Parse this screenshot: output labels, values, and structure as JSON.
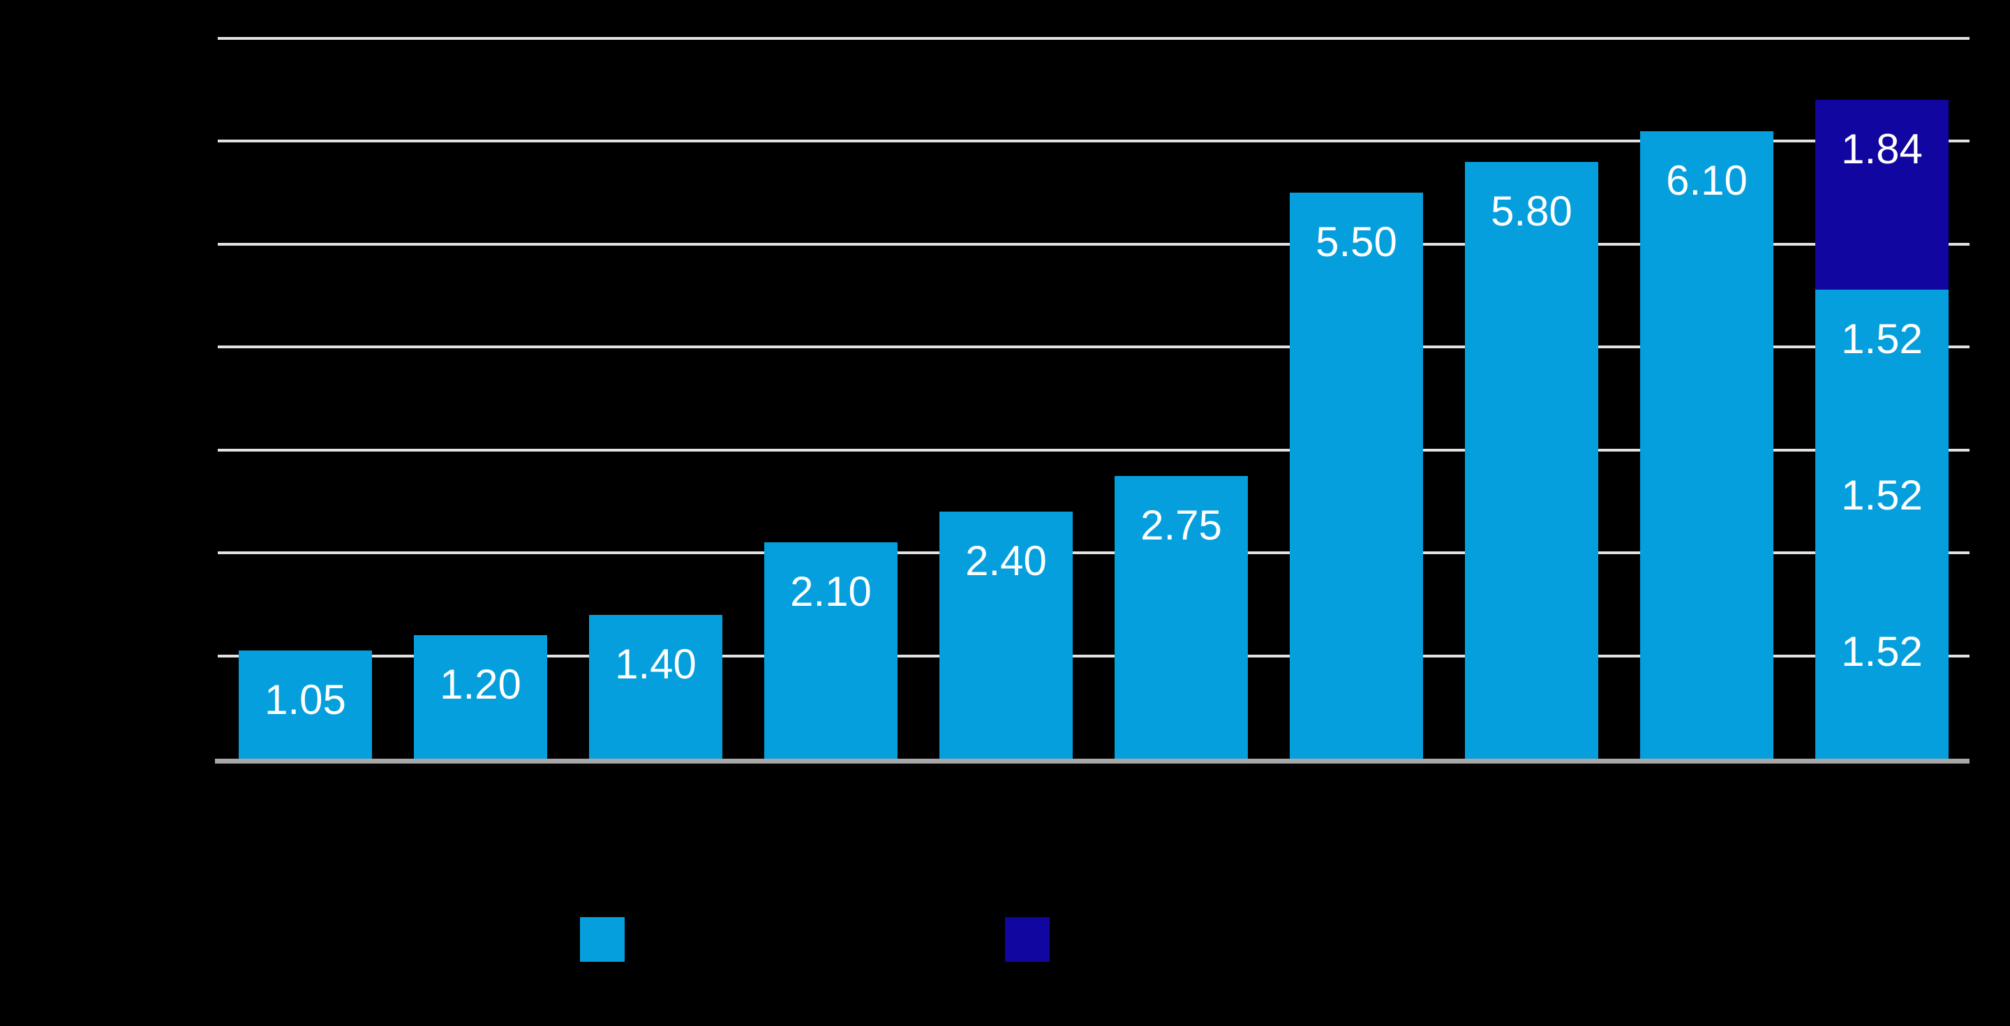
{
  "canvas": {
    "background": "#000000"
  },
  "chart_data": {
    "type": "bar",
    "stacked": true,
    "title": "",
    "xlabel": "",
    "ylabel": "",
    "ylim": [
      0,
      7
    ],
    "grid": true,
    "gridlines": {
      "values": [
        1,
        2,
        3,
        4,
        5,
        6,
        7
      ],
      "color": "#E2E2E2",
      "baseline_color": "#A8A8A8"
    },
    "value_label_color": "#FFFFFF",
    "series": [
      {
        "id": "light-blue",
        "color": "#059FDD"
      },
      {
        "id": "dark-blue",
        "color": "#1106A0"
      }
    ],
    "bars": [
      {
        "segments": [
          {
            "series": "light-blue",
            "value": 1.05,
            "label": "1.05"
          }
        ]
      },
      {
        "segments": [
          {
            "series": "light-blue",
            "value": 1.2,
            "label": "1.20"
          }
        ]
      },
      {
        "segments": [
          {
            "series": "light-blue",
            "value": 1.4,
            "label": "1.40"
          }
        ]
      },
      {
        "segments": [
          {
            "series": "light-blue",
            "value": 2.1,
            "label": "2.10"
          }
        ]
      },
      {
        "segments": [
          {
            "series": "light-blue",
            "value": 2.4,
            "label": "2.40"
          }
        ]
      },
      {
        "segments": [
          {
            "series": "light-blue",
            "value": 2.75,
            "label": "2.75"
          }
        ]
      },
      {
        "segments": [
          {
            "series": "light-blue",
            "value": 5.5,
            "label": "5.50"
          }
        ]
      },
      {
        "segments": [
          {
            "series": "light-blue",
            "value": 5.8,
            "label": "5.80"
          }
        ]
      },
      {
        "segments": [
          {
            "series": "light-blue",
            "value": 6.1,
            "label": "6.10"
          }
        ]
      },
      {
        "segments": [
          {
            "series": "light-blue",
            "value": 1.52,
            "label": "1.52"
          },
          {
            "series": "light-blue",
            "value": 1.52,
            "label": "1.52"
          },
          {
            "series": "light-blue",
            "value": 1.52,
            "label": "1.52"
          },
          {
            "series": "dark-blue",
            "value": 1.84,
            "label": "1.84"
          }
        ]
      }
    ],
    "legend": {
      "position": "bottom",
      "entries": [
        {
          "series": "light-blue"
        },
        {
          "series": "dark-blue"
        }
      ]
    }
  }
}
